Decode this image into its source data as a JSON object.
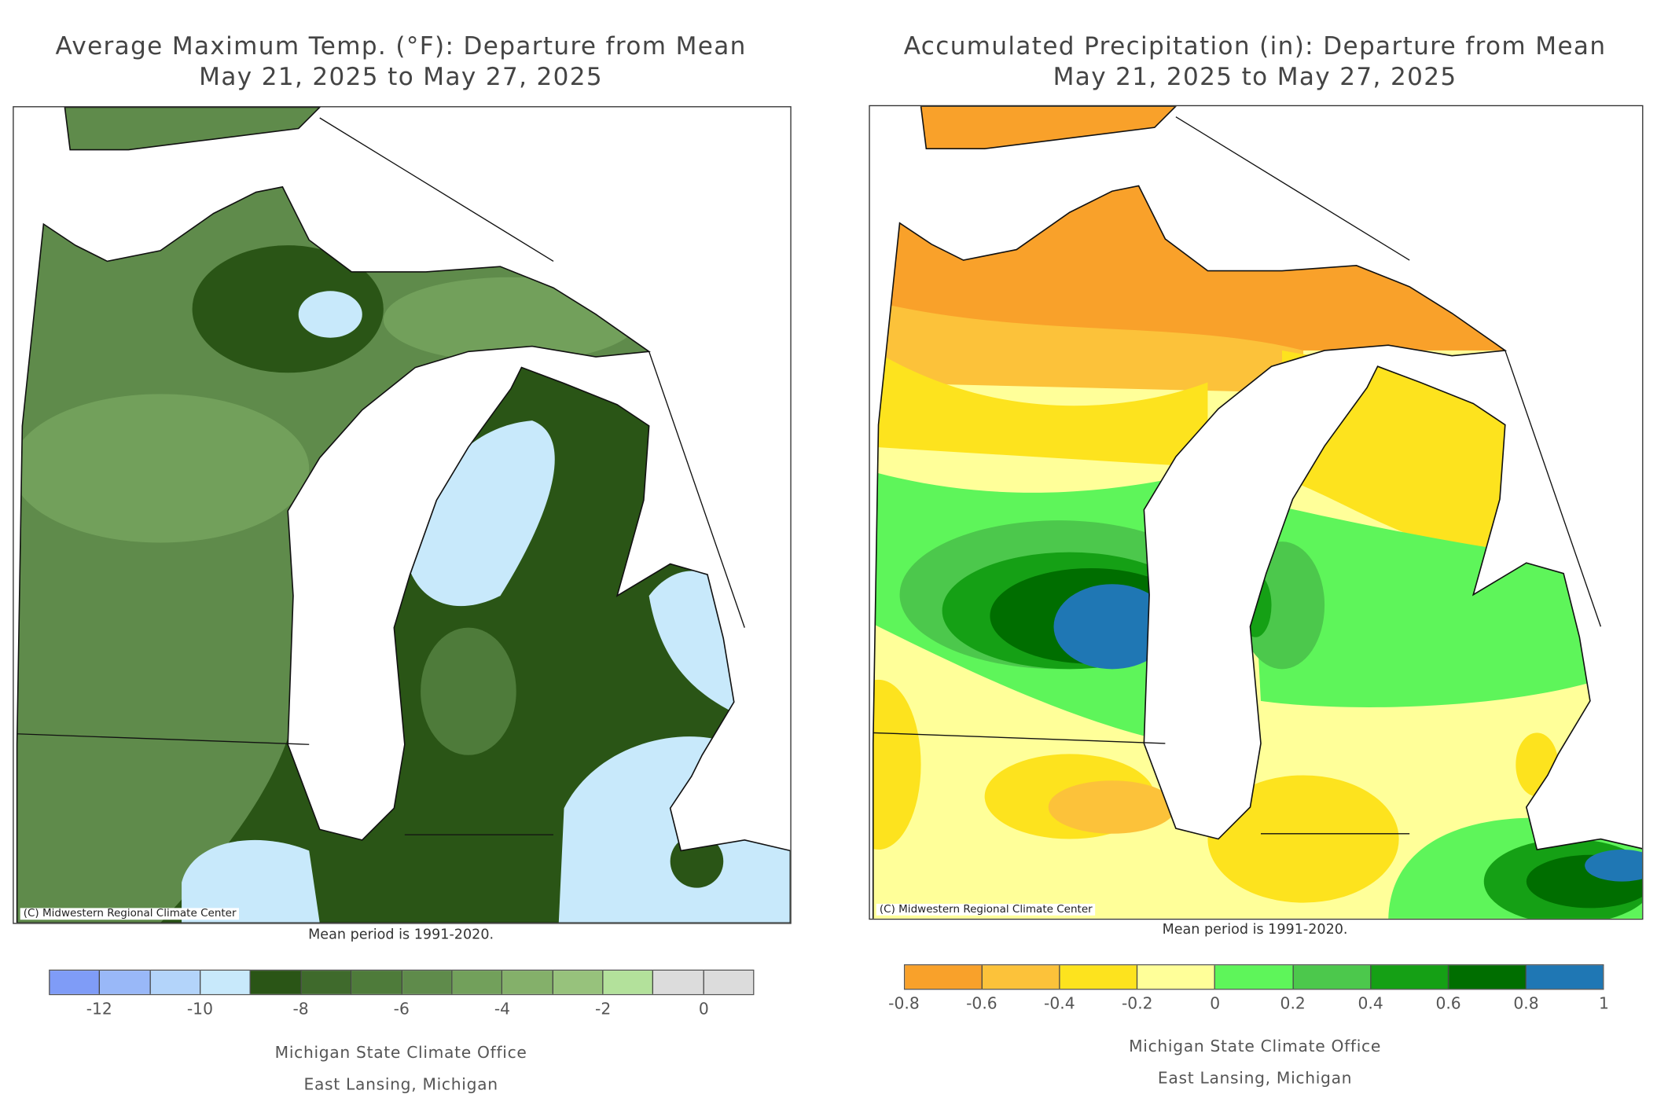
{
  "panels": [
    {
      "title_line1": "Average Maximum Temp. (°F): Departure from Mean",
      "title_line2": "May 21, 2025 to May 27, 2025",
      "credit": "(C) Midwestern Regional Climate Center",
      "mean_period": "Mean period is 1991-2020.",
      "legend": {
        "colors": [
          "#7f9cf7",
          "#99b8f8",
          "#b3d4fa",
          "#c8e9fb",
          "#2a5516",
          "#3f6a2c",
          "#4e7b3a",
          "#5f8b4b",
          "#72a05b",
          "#84b06a",
          "#97c27c",
          "#b3e19b",
          "#dcdcdc",
          "#dcdcdc"
        ],
        "tick_labels": [
          "-12",
          "-10",
          "-8",
          "-6",
          "-4",
          "-2",
          "0"
        ]
      },
      "office": "Michigan State Climate Office",
      "location": "East Lansing, Michigan"
    },
    {
      "title_line1": "Accumulated Precipitation (in): Departure from Mean",
      "title_line2": "May 21, 2025 to May 27, 2025",
      "credit": "(C) Midwestern Regional Climate Center",
      "mean_period": "Mean period is 1991-2020.",
      "legend": {
        "colors": [
          "#f9a12a",
          "#fcc23a",
          "#fde31e",
          "#ffff99",
          "#5ef55a",
          "#4cc84c",
          "#15a015",
          "#006e00",
          "#1f77b4"
        ],
        "tick_labels": [
          "-0.8",
          "-0.6",
          "-0.4",
          "-0.2",
          "0",
          "0.2",
          "0.4",
          "0.6",
          "0.8",
          "1"
        ]
      },
      "office": "Michigan State Climate Office",
      "location": "East Lansing, Michigan"
    }
  ]
}
